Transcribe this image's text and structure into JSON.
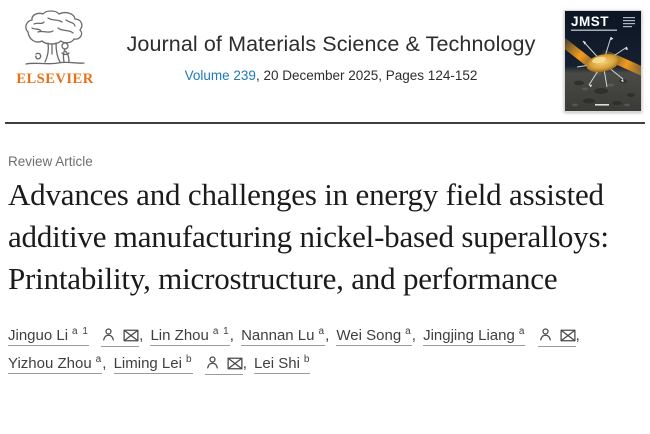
{
  "banner": {
    "publisher": "ELSEVIER",
    "journal_title": "Journal of Materials Science & Technology",
    "volume_link": "Volume 239",
    "issue_info": ", 20 December 2025, Pages 124-152",
    "cover": {
      "masthead": "JMST"
    }
  },
  "article": {
    "type": "Review Article",
    "title": "Advances and challenges in energy field assisted additive manufacturing nickel-based superalloys: Printability, microstructure, and performance"
  },
  "authors": {
    "list": [
      {
        "name": "Jinguo Li",
        "sup": "a 1",
        "corresponding": true
      },
      {
        "name": "Lin Zhou",
        "sup": "a 1",
        "corresponding": false
      },
      {
        "name": "Nannan Lu",
        "sup": "a",
        "corresponding": false
      },
      {
        "name": "Wei Song",
        "sup": "a",
        "corresponding": false
      },
      {
        "name": "Jingjing Liang",
        "sup": "a",
        "corresponding": true
      },
      {
        "name": "Yizhou Zhou",
        "sup": "a",
        "corresponding": false
      },
      {
        "name": "Liming Lei",
        "sup": "b",
        "corresponding": true
      },
      {
        "name": "Lei Shi",
        "sup": "b",
        "corresponding": false
      }
    ]
  },
  "colors": {
    "link_blue": "#1e7ab8",
    "elsevier_orange": "#e8701a",
    "title_black": "#1b1b1b",
    "muted_gray": "#6f6f6f",
    "cover_gold": "#d9a23a",
    "cover_bg": "#0c1524"
  }
}
